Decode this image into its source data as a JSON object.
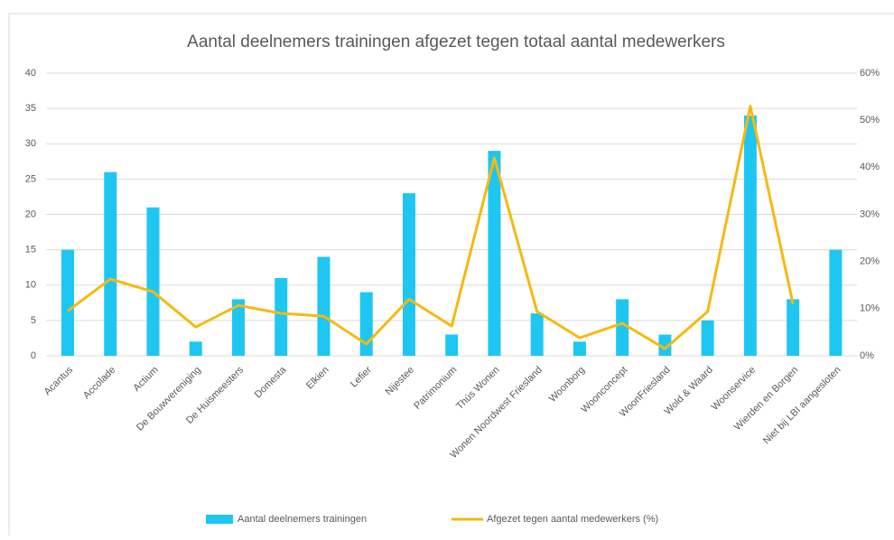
{
  "chart_data": {
    "type": "bar+line",
    "title": "Aantal deelnemers trainingen afgezet tegen totaal aantal medewerkers",
    "categories": [
      "Acantus",
      "Accolade",
      "Actium",
      "De Bouwvereniging",
      "De Huismeesters",
      "Domesta",
      "Elkien",
      "Lefier",
      "Nijestee",
      "Patrimonium",
      "Thús Wonen",
      "Wonen Noordwest Friesland",
      "Woonborg",
      "Woonconcept",
      "WoonFriesland",
      "Wold & Waard",
      "Woonservice",
      "Wierden en Borgen",
      "Niet bij LBI aangesloten"
    ],
    "series": [
      {
        "name": "Aantal deelnemers trainingen",
        "type": "bar",
        "color": "#1ec6f2",
        "values": [
          15,
          26,
          21,
          2,
          8,
          11,
          14,
          9,
          23,
          3,
          29,
          6,
          2,
          8,
          3,
          5,
          34,
          8,
          15
        ]
      },
      {
        "name": "Afgezet tegen aantal medewerkers (%)",
        "type": "line",
        "axis": "y2",
        "color": "#f7b90f",
        "values": [
          9.5,
          16.3,
          13.6,
          6.1,
          10.7,
          9,
          8.4,
          2.5,
          12,
          6.3,
          42,
          9.4,
          3.8,
          6.9,
          1.5,
          9.4,
          53,
          11,
          null
        ]
      }
    ],
    "ylim": [
      0,
      40
    ],
    "yticks": [
      0,
      5,
      10,
      15,
      20,
      25,
      30,
      35,
      40
    ],
    "y2lim": [
      0,
      60
    ],
    "y2ticks": [
      {
        "value": 0,
        "label": "0%"
      },
      {
        "value": 10,
        "label": "10%"
      },
      {
        "value": 20,
        "label": "20%"
      },
      {
        "value": 30,
        "label": "30%"
      },
      {
        "value": 40,
        "label": "40%"
      },
      {
        "value": 50,
        "label": "50%"
      },
      {
        "value": 60,
        "label": "60%"
      }
    ],
    "grid": true,
    "legend": "bottom"
  }
}
